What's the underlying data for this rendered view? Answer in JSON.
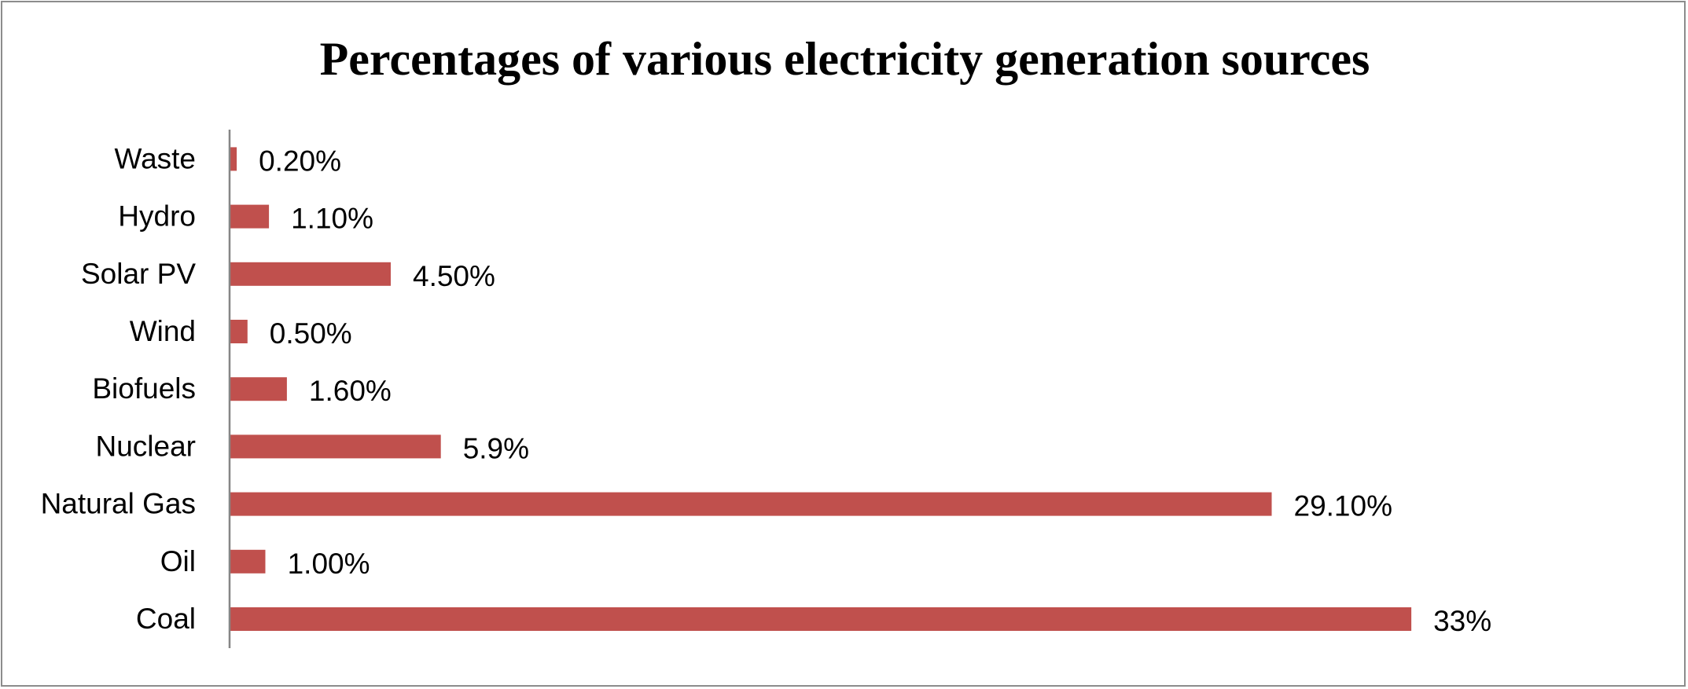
{
  "chart_data": {
    "type": "bar",
    "orientation": "horizontal",
    "title": "Percentages of various electricity generation sources",
    "xlabel": "",
    "ylabel": "",
    "categories": [
      "Coal",
      "Oil",
      "Natural Gas",
      "Nuclear",
      "Biofuels",
      "Wind",
      "Solar PV",
      "Hydro",
      "Waste"
    ],
    "values": [
      33,
      1.0,
      29.1,
      5.9,
      1.6,
      0.5,
      4.5,
      1.1,
      0.2
    ],
    "data_labels": [
      "33%",
      "1.00%",
      "29.10%",
      "5.9%",
      "1.60%",
      "0.50%",
      "4.50%",
      "1.10%",
      "0.20%"
    ],
    "xlim": [
      0,
      33
    ],
    "grid": false,
    "legend": "none",
    "bar_color": "#C0504D",
    "axis_color": "#868686"
  }
}
